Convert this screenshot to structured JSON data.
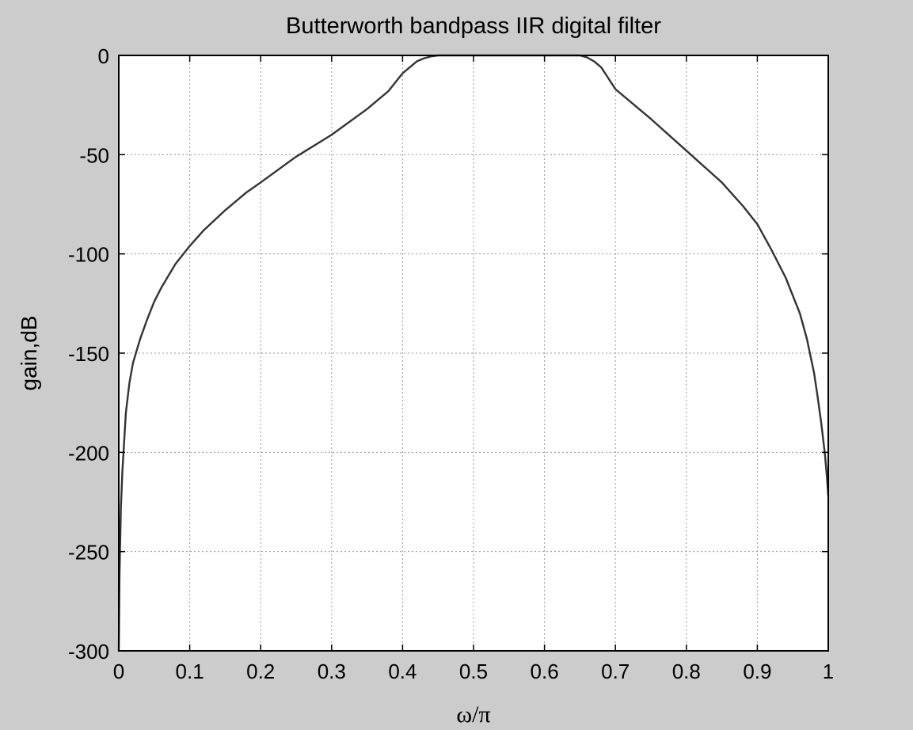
{
  "chart_data": {
    "type": "line",
    "title": "Butterworth bandpass IIR digital filter",
    "xlabel": "ω/π",
    "ylabel": "gain,dB",
    "xlim": [
      0,
      1
    ],
    "ylim": [
      -300,
      0
    ],
    "xticks": [
      0,
      0.1,
      0.2,
      0.3,
      0.4,
      0.5,
      0.6,
      0.7,
      0.8,
      0.9,
      1
    ],
    "xtick_labels": [
      "0",
      "0.1",
      "0.2",
      "0.3",
      "0.4",
      "0.5",
      "0.6",
      "0.7",
      "0.8",
      "0.9",
      "1"
    ],
    "yticks": [
      0,
      -50,
      -100,
      -150,
      -200,
      -250,
      -300
    ],
    "ytick_labels": [
      "0",
      "-50",
      "-100",
      "-150",
      "-200",
      "-250",
      "-300"
    ],
    "grid": true,
    "line_color": "#333333",
    "series": [
      {
        "x": [
          0,
          0.001,
          0.003,
          0.005,
          0.008,
          0.01,
          0.015,
          0.02,
          0.03,
          0.04,
          0.05,
          0.06,
          0.08,
          0.1,
          0.12,
          0.15,
          0.18,
          0.2,
          0.25,
          0.3,
          0.35,
          0.38,
          0.4,
          0.42,
          0.43,
          0.44,
          0.45,
          0.46,
          0.5,
          0.55,
          0.6,
          0.64,
          0.65,
          0.66,
          0.67,
          0.68,
          0.7,
          0.75,
          0.8,
          0.85,
          0.88,
          0.9,
          0.92,
          0.94,
          0.96,
          0.97,
          0.98,
          0.985,
          0.99,
          0.995,
          0.998,
          1
        ],
        "y": [
          -300,
          -262,
          -228,
          -210,
          -192,
          -180,
          -165,
          -155,
          -143,
          -133,
          -124,
          -117,
          -105,
          -96,
          -88,
          -78,
          -69,
          -64,
          -51,
          -40,
          -27,
          -18,
          -9,
          -3,
          -1.5,
          -0.5,
          0,
          0,
          0,
          0,
          0,
          0,
          0,
          -1,
          -3,
          -6,
          -17,
          -32,
          -48,
          -64,
          -76,
          -85,
          -98,
          -112,
          -130,
          -143,
          -160,
          -172,
          -185,
          -200,
          -212,
          -222
        ]
      }
    ]
  }
}
